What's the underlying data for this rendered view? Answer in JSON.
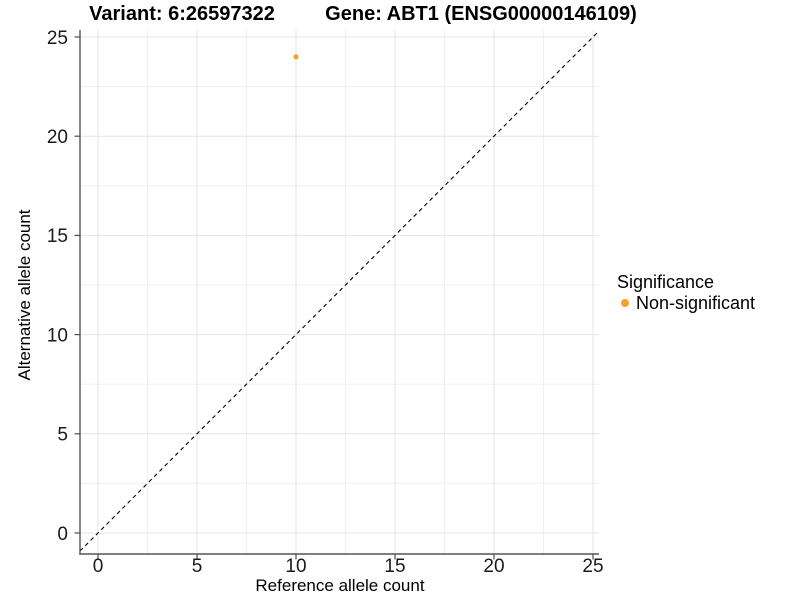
{
  "header": {
    "variant_title": "Variant: 6:26597322",
    "gene_title": "Gene: ABT1 (ENSG00000146109)"
  },
  "chart_data": {
    "type": "scatter",
    "title": "Variant: 6:26597322    Gene: ABT1 (ENSG00000146109)",
    "xlabel": "Reference allele count",
    "ylabel": "Alternative allele count",
    "xlim": [
      -1,
      25.4
    ],
    "ylim": [
      -1.1,
      25.4
    ],
    "x_ticks": [
      0,
      5,
      10,
      15,
      20,
      25
    ],
    "y_ticks": [
      0,
      5,
      10,
      15,
      20,
      25
    ],
    "x_tick_labels": [
      "0",
      "5",
      "10",
      "15",
      "20",
      "25"
    ],
    "y_tick_labels": [
      "0",
      "5",
      "10",
      "15",
      "20",
      "25"
    ],
    "grid": {
      "visible": true,
      "major_every": 5,
      "minor_every": 2.5,
      "major_color": "#e4e4e4",
      "minor_color": "#f0f0f0"
    },
    "reference_line": {
      "kind": "identity y=x",
      "style": "dashed",
      "color": "#000000"
    },
    "series": [
      {
        "name": "Non-significant",
        "color": "#F9A02E",
        "points": [
          {
            "x": 10,
            "y": 24
          }
        ]
      }
    ],
    "legend": {
      "title": "Significance",
      "position": "right",
      "entries": [
        {
          "label": "Non-significant",
          "color": "#F9A02E"
        }
      ]
    }
  }
}
